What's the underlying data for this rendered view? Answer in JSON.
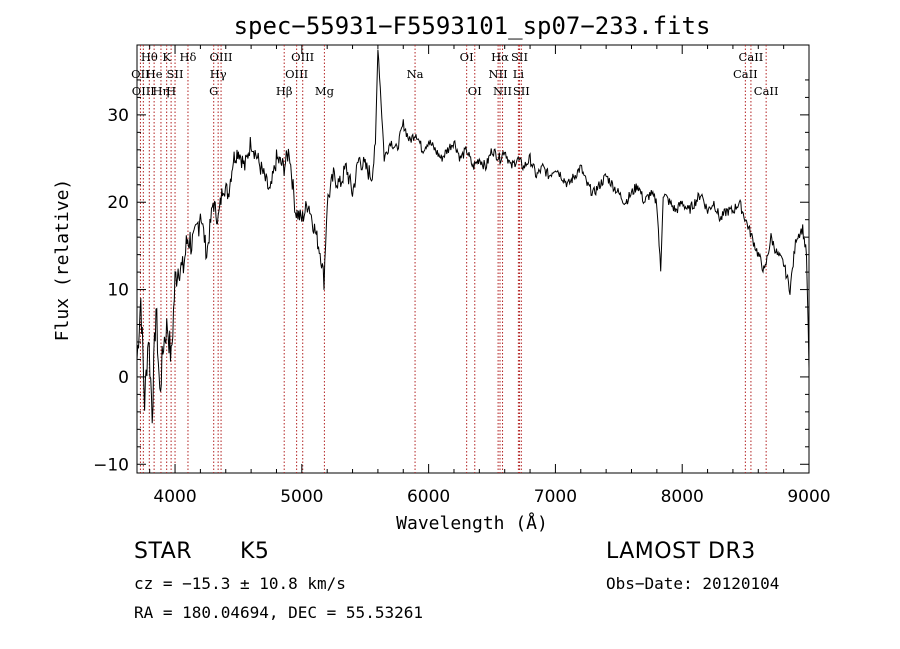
{
  "chart_data": {
    "type": "line",
    "title": "spec−55931−F5593101_sp07−233.fits",
    "xlabel": "Wavelength (Å)",
    "ylabel": "Flux (relative)",
    "xlim": [
      3700,
      9000
    ],
    "ylim": [
      -11,
      38
    ],
    "xticks": [
      4000,
      5000,
      6000,
      7000,
      8000,
      9000
    ],
    "yticks": [
      -10,
      0,
      10,
      20,
      30
    ],
    "grid": false,
    "series": [
      {
        "name": "spectrum",
        "x": [
          3700,
          3730,
          3760,
          3790,
          3820,
          3850,
          3880,
          3910,
          3940,
          3970,
          4000,
          4030,
          4060,
          4100,
          4150,
          4200,
          4250,
          4300,
          4340,
          4380,
          4420,
          4460,
          4500,
          4550,
          4600,
          4650,
          4700,
          4750,
          4800,
          4860,
          4900,
          4950,
          5000,
          5050,
          5100,
          5150,
          5175,
          5200,
          5250,
          5300,
          5350,
          5400,
          5450,
          5500,
          5550,
          5580,
          5600,
          5650,
          5700,
          5750,
          5800,
          5850,
          5900,
          5950,
          6000,
          6050,
          6100,
          6150,
          6200,
          6250,
          6300,
          6350,
          6400,
          6450,
          6500,
          6563,
          6600,
          6650,
          6700,
          6750,
          6800,
          6850,
          6900,
          6950,
          7000,
          7050,
          7100,
          7150,
          7200,
          7250,
          7300,
          7350,
          7400,
          7450,
          7500,
          7550,
          7600,
          7650,
          7700,
          7750,
          7800,
          7830,
          7850,
          7900,
          7950,
          8000,
          8050,
          8100,
          8150,
          8200,
          8250,
          8300,
          8350,
          8400,
          8450,
          8500,
          8550,
          8600,
          8650,
          8700,
          8750,
          8800,
          8850,
          8900,
          8950,
          8980,
          9000
        ],
        "values": [
          2,
          9,
          -3,
          5,
          -4,
          8,
          -2,
          4,
          6,
          2,
          11,
          13,
          12,
          16,
          15,
          19,
          14,
          20,
          18,
          22,
          21,
          25,
          26,
          24,
          27,
          25,
          23,
          21,
          25,
          24,
          26,
          19,
          18,
          20,
          17,
          14,
          11,
          20,
          23,
          22,
          24,
          21,
          25,
          24,
          23,
          26,
          38,
          25,
          27,
          26,
          29,
          27,
          28,
          26,
          27,
          26,
          25,
          26,
          27,
          25,
          26,
          24,
          25,
          24,
          26,
          25,
          26,
          24,
          25,
          24,
          25,
          23,
          24,
          23,
          24,
          23,
          22,
          23,
          24,
          22,
          21,
          22,
          23,
          22,
          21,
          20,
          21,
          22,
          20,
          21,
          20,
          12,
          21,
          20,
          19,
          20,
          19,
          20,
          21,
          19,
          20,
          18,
          19,
          19,
          20,
          18,
          16,
          14,
          12,
          16,
          14,
          13,
          10,
          16,
          17,
          14,
          1
        ]
      }
    ],
    "spectral_lines": [
      {
        "label": "Hθ",
        "x": 3797,
        "row": 1
      },
      {
        "label": "OII",
        "x": 3727,
        "row": 2
      },
      {
        "label": "OIII",
        "x": 3750,
        "row": 3
      },
      {
        "label": "He",
        "x": 3835,
        "row": 2
      },
      {
        "label": "Hη",
        "x": 3889,
        "row": 3
      },
      {
        "label": "K",
        "x": 3934,
        "row": 1
      },
      {
        "label": "SII",
        "x": 4000,
        "row": 2
      },
      {
        "label": "H",
        "x": 3969,
        "row": 3
      },
      {
        "label": "Hδ",
        "x": 4102,
        "row": 1
      },
      {
        "label": "OIII",
        "x": 4363,
        "row": 1
      },
      {
        "label": "Hγ",
        "x": 4340,
        "row": 2
      },
      {
        "label": "G",
        "x": 4305,
        "row": 3
      },
      {
        "label": "Hβ",
        "x": 4861,
        "row": 3
      },
      {
        "label": "OIII",
        "x": 5007,
        "row": 1
      },
      {
        "label": "OIII",
        "x": 4959,
        "row": 2
      },
      {
        "label": "Mg",
        "x": 5178,
        "row": 3
      },
      {
        "label": "Na",
        "x": 5893,
        "row": 2
      },
      {
        "label": "OI",
        "x": 6300,
        "row": 1
      },
      {
        "label": "OI",
        "x": 6364,
        "row": 3
      },
      {
        "label": "Hα",
        "x": 6563,
        "row": 1
      },
      {
        "label": "NII",
        "x": 6548,
        "row": 2
      },
      {
        "label": "NII",
        "x": 6583,
        "row": 3
      },
      {
        "label": "SII",
        "x": 6717,
        "row": 1
      },
      {
        "label": "Li",
        "x": 6708,
        "row": 2
      },
      {
        "label": "SII",
        "x": 6731,
        "row": 3
      },
      {
        "label": "CaII",
        "x": 8542,
        "row": 1
      },
      {
        "label": "CaII",
        "x": 8498,
        "row": 2
      },
      {
        "label": "CaII",
        "x": 8662,
        "row": 3
      }
    ]
  },
  "info": {
    "object_class": "STAR",
    "subclass": "K5",
    "survey": "LAMOST DR3",
    "cz": "cz = −15.3 ± 10.8 km/s",
    "obs_date": "Obs−Date: 20120104",
    "coords": "RA = 180.04694, DEC =  55.53261"
  },
  "colors": {
    "spectrum": "#000000",
    "line_markers": "#b22222",
    "background": "#ffffff"
  }
}
